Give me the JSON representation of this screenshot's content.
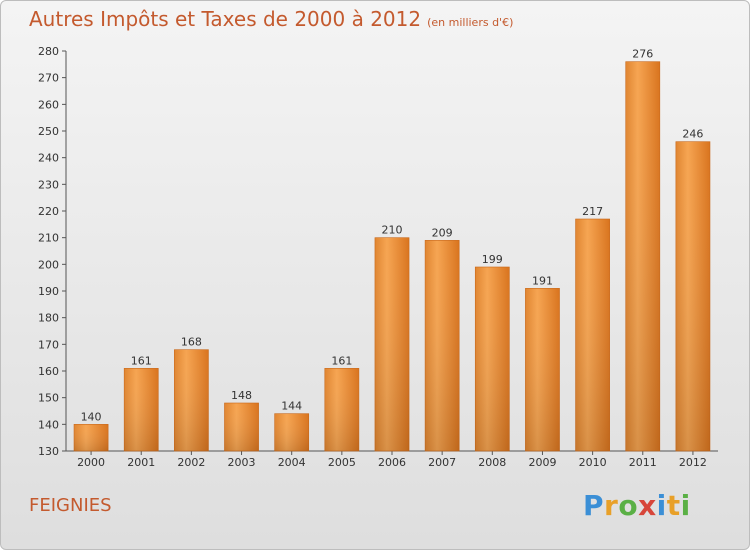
{
  "title": "Autres Impôts et Taxes de 2000 à 2012",
  "subtitle": "(en milliers d'€)",
  "city": "FEIGNIES",
  "logo": "Proxiti",
  "colors": {
    "bar_top": "#f6a552",
    "bar_bottom": "#d9741e",
    "title": "#c45a2e"
  },
  "chart_data": {
    "type": "bar",
    "categories": [
      "2000",
      "2001",
      "2002",
      "2003",
      "2004",
      "2005",
      "2006",
      "2007",
      "2008",
      "2009",
      "2010",
      "2011",
      "2012"
    ],
    "values": [
      140,
      161,
      168,
      148,
      144,
      161,
      210,
      209,
      199,
      191,
      217,
      276,
      246
    ],
    "ylim": [
      130,
      280
    ],
    "yticks": [
      130,
      140,
      150,
      160,
      170,
      180,
      190,
      200,
      210,
      220,
      230,
      240,
      250,
      260,
      270,
      280
    ],
    "grid": false
  }
}
